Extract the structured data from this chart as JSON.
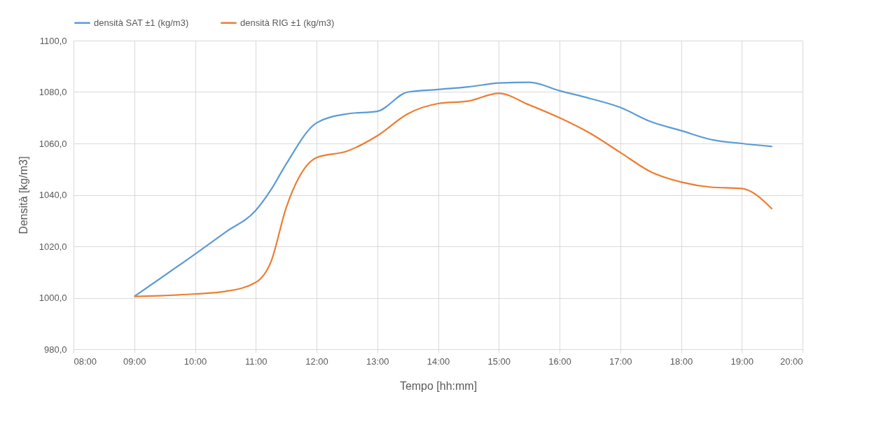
{
  "chart_data": {
    "type": "line",
    "xlabel": "Tempo [hh:mm]",
    "ylabel": "Densità [kg/m3]",
    "xlim": [
      8,
      20
    ],
    "xticks": [
      {
        "value": 8,
        "label": "08:00"
      },
      {
        "value": 9,
        "label": "09:00"
      },
      {
        "value": 10,
        "label": "10:00"
      },
      {
        "value": 11,
        "label": "11:00"
      },
      {
        "value": 12,
        "label": "12:00"
      },
      {
        "value": 13,
        "label": "13:00"
      },
      {
        "value": 14,
        "label": "14:00"
      },
      {
        "value": 15,
        "label": "15:00"
      },
      {
        "value": 16,
        "label": "16:00"
      },
      {
        "value": 17,
        "label": "17:00"
      },
      {
        "value": 18,
        "label": "18:00"
      },
      {
        "value": 19,
        "label": "19:00"
      },
      {
        "value": 20,
        "label": "20:00"
      }
    ],
    "ylim": [
      980,
      1100
    ],
    "yticks": [
      {
        "value": 980,
        "label": "980,0"
      },
      {
        "value": 1000,
        "label": "1000,0"
      },
      {
        "value": 1020,
        "label": "1020,0"
      },
      {
        "value": 1040,
        "label": "1040,0"
      },
      {
        "value": 1060,
        "label": "1060,0"
      },
      {
        "value": 1080,
        "label": "1080,0"
      },
      {
        "value": 1100,
        "label": "1100,0"
      }
    ],
    "grid": true,
    "legend": "top",
    "marker": "none",
    "line_style": "solid",
    "series": [
      {
        "name": "densità SAT ±1 (kg/m3)",
        "color": "#5b9bd5",
        "x": [
          9,
          10,
          10.5,
          11,
          11.25,
          11.5,
          12,
          12.5,
          13,
          13.5,
          14,
          14.5,
          15,
          15.5,
          16,
          16.5,
          17,
          17.5,
          18,
          18.5,
          19,
          19.5
        ],
        "values": [
          1000.5,
          1017,
          1025.5,
          1034,
          1042,
          1052,
          1068,
          1071.5,
          1072.5,
          1080,
          1081,
          1082,
          1083.5,
          1083.8,
          1080.5,
          1077.5,
          1074,
          1068.5,
          1065,
          1061.5,
          1060,
          1058.8
        ]
      },
      {
        "name": "densità RIG ±1 (kg/m3)",
        "color": "#ed7d31",
        "x": [
          9,
          10,
          10.5,
          11,
          11.25,
          11.5,
          12,
          12.5,
          13,
          13.5,
          14,
          14.5,
          15,
          15.5,
          16,
          16.5,
          17,
          17.5,
          18,
          18.5,
          19,
          19.5
        ],
        "values": [
          1000.5,
          1001.5,
          1002.5,
          1006,
          1014,
          1035,
          1054.5,
          1057,
          1063,
          1071.5,
          1075.5,
          1076.5,
          1079.5,
          1075,
          1070,
          1064,
          1056.5,
          1049,
          1045,
          1043,
          1042.5,
          1034.5
        ]
      }
    ]
  }
}
